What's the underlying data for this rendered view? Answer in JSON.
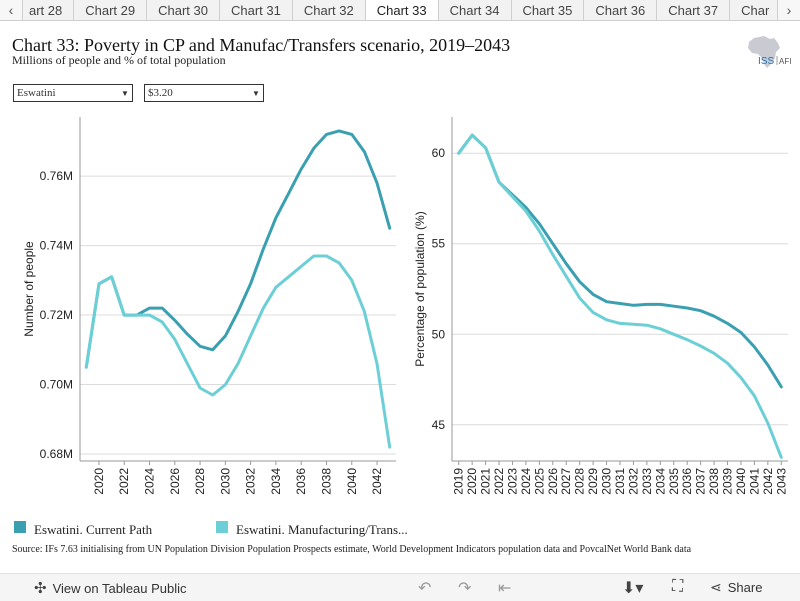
{
  "tabs": {
    "left_arrow": "‹",
    "right_arrow": "›",
    "items": [
      "art 28",
      "Chart 29",
      "Chart 30",
      "Chart 31",
      "Chart 32",
      "Chart 33",
      "Chart 34",
      "Chart 35",
      "Chart 36",
      "Chart 37",
      "Char"
    ],
    "active": "Chart 33"
  },
  "header": {
    "title": "Chart 33: Poverty in CP and Manufac/Transfers scenario, 2019–2043",
    "subtitle": "Millions of people and % of total population"
  },
  "logo": {
    "text_iss": "ISS",
    "text_afi": "AFI"
  },
  "filters": {
    "country": "Eswatini",
    "poverty_line": "$3.20"
  },
  "colors": {
    "current_path": "#3a9fb0",
    "manufacturing": "#6ccfd6"
  },
  "legend": {
    "current_path": "Eswatini. Current Path",
    "manufacturing": "Eswatini. Manufacturing/Trans..."
  },
  "source": "Source: IFs 7.63 initialising from UN Population Division Population Prospects estimate, World Development Indicators population data and PovcalNet World Bank data",
  "footer": {
    "view_label": "View on Tableau Public",
    "share_label": "Share"
  },
  "chart_data": [
    {
      "type": "line",
      "ylabel": "Number of people",
      "ylim": [
        0.678,
        0.777
      ],
      "yticks": [
        0.68,
        0.7,
        0.72,
        0.74,
        0.76
      ],
      "ytick_labels": [
        "0.68M",
        "0.70M",
        "0.72M",
        "0.74M",
        "0.76M"
      ],
      "xlim": [
        2018.5,
        2043.5
      ],
      "xticks": [
        2020,
        2022,
        2024,
        2026,
        2028,
        2030,
        2032,
        2034,
        2036,
        2038,
        2040,
        2042
      ],
      "x": [
        2019,
        2020,
        2021,
        2022,
        2023,
        2024,
        2025,
        2026,
        2027,
        2028,
        2029,
        2030,
        2031,
        2032,
        2033,
        2034,
        2035,
        2036,
        2037,
        2038,
        2039,
        2040,
        2041,
        2042,
        2043
      ],
      "series": [
        {
          "name": "Eswatini. Current Path",
          "values": [
            0.705,
            0.729,
            0.731,
            0.72,
            0.72,
            0.722,
            0.722,
            0.7185,
            0.7145,
            0.711,
            0.71,
            0.714,
            0.721,
            0.729,
            0.739,
            0.748,
            0.755,
            0.762,
            0.768,
            0.772,
            0.773,
            0.772,
            0.767,
            0.758,
            0.745
          ]
        },
        {
          "name": "Eswatini. Manufacturing/Trans...",
          "values": [
            0.705,
            0.729,
            0.731,
            0.72,
            0.72,
            0.72,
            0.718,
            0.713,
            0.706,
            0.699,
            0.697,
            0.7,
            0.706,
            0.714,
            0.722,
            0.728,
            0.731,
            0.734,
            0.737,
            0.737,
            0.735,
            0.73,
            0.721,
            0.706,
            0.682
          ]
        }
      ]
    },
    {
      "type": "line",
      "ylabel": "Percentage of population (%)",
      "ylim": [
        43,
        62
      ],
      "yticks": [
        45,
        50,
        55,
        60
      ],
      "ytick_labels": [
        "45",
        "50",
        "55",
        "60"
      ],
      "xlim": [
        2018.5,
        2043.5
      ],
      "xticks": [
        2019,
        2020,
        2021,
        2022,
        2023,
        2024,
        2025,
        2026,
        2027,
        2028,
        2029,
        2030,
        2031,
        2032,
        2033,
        2034,
        2035,
        2036,
        2037,
        2038,
        2039,
        2040,
        2041,
        2042,
        2043
      ],
      "x": [
        2019,
        2020,
        2021,
        2022,
        2023,
        2024,
        2025,
        2026,
        2027,
        2028,
        2029,
        2030,
        2031,
        2032,
        2033,
        2034,
        2035,
        2036,
        2037,
        2038,
        2039,
        2040,
        2041,
        2042,
        2043
      ],
      "series": [
        {
          "name": "Eswatini. Current Path",
          "values": [
            60.0,
            61.0,
            60.3,
            58.4,
            57.7,
            57.0,
            56.1,
            55.0,
            53.9,
            52.9,
            52.2,
            51.8,
            51.7,
            51.6,
            51.65,
            51.65,
            51.55,
            51.45,
            51.3,
            51.0,
            50.6,
            50.1,
            49.3,
            48.3,
            47.1
          ]
        },
        {
          "name": "Eswatini. Manufacturing/Trans...",
          "values": [
            60.0,
            61.0,
            60.3,
            58.4,
            57.6,
            56.8,
            55.7,
            54.4,
            53.2,
            52.0,
            51.2,
            50.8,
            50.6,
            50.55,
            50.5,
            50.3,
            50.0,
            49.7,
            49.35,
            48.95,
            48.4,
            47.6,
            46.6,
            45.1,
            43.2
          ]
        }
      ]
    }
  ]
}
